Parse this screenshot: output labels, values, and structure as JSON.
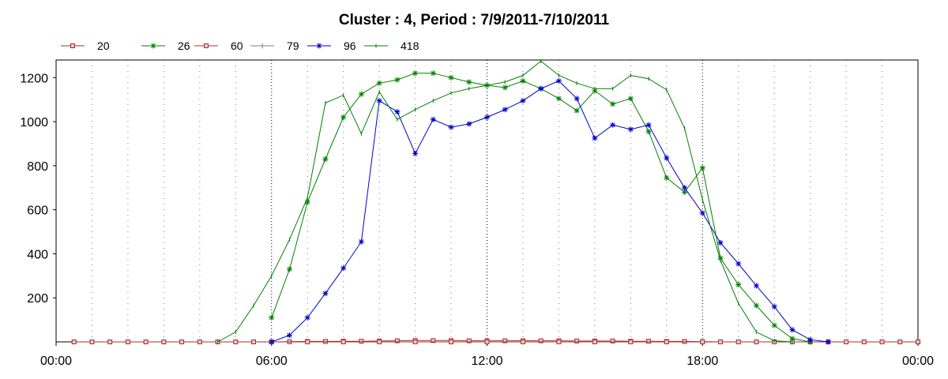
{
  "chart_data": {
    "type": "line",
    "title": "Cluster : 4, Period : 7/9/2011-7/10/2011",
    "xlabel": "",
    "ylabel": "",
    "x_ticks": [
      "00:00",
      "06:00",
      "12:00",
      "18:00",
      "00:00"
    ],
    "x_range_hours": [
      0,
      24
    ],
    "y_ticks": [
      200,
      400,
      600,
      800,
      1000,
      1200
    ],
    "ylim": [
      0,
      1280
    ],
    "grid": "vertical dotted",
    "legend_position": "top-left",
    "series": [
      {
        "name": "20",
        "color": "#a03030",
        "marker": "square",
        "points": [
          [
            0.5,
            0
          ],
          [
            1,
            0
          ],
          [
            1.5,
            0
          ],
          [
            2,
            0
          ],
          [
            2.5,
            0
          ],
          [
            3,
            0
          ],
          [
            3.5,
            0
          ],
          [
            4,
            0
          ],
          [
            4.5,
            0
          ],
          [
            5,
            0
          ],
          [
            5.5,
            0
          ],
          [
            6,
            0
          ],
          [
            6.5,
            1
          ],
          [
            7,
            2
          ],
          [
            7.5,
            2
          ],
          [
            8,
            3
          ],
          [
            8.5,
            3
          ],
          [
            9,
            4
          ],
          [
            9.5,
            5
          ],
          [
            10,
            6
          ],
          [
            10.5,
            6
          ],
          [
            11,
            6
          ],
          [
            11.5,
            5
          ],
          [
            12,
            5
          ],
          [
            12.5,
            5
          ],
          [
            13,
            5
          ],
          [
            13.5,
            5
          ],
          [
            14,
            5
          ],
          [
            14.5,
            4
          ],
          [
            15,
            4
          ],
          [
            15.5,
            4
          ],
          [
            16,
            3
          ],
          [
            16.5,
            3
          ],
          [
            17,
            2
          ],
          [
            17.5,
            2
          ],
          [
            18,
            1
          ],
          [
            18.5,
            0
          ],
          [
            19,
            0
          ],
          [
            19.5,
            0
          ],
          [
            20,
            0
          ],
          [
            20.5,
            0
          ],
          [
            21,
            0
          ],
          [
            21.5,
            0
          ],
          [
            22,
            0
          ],
          [
            22.5,
            0
          ],
          [
            23,
            0
          ],
          [
            23.5,
            0
          ],
          [
            24,
            0
          ]
        ]
      },
      {
        "name": "26",
        "color": "#008000",
        "marker": "star",
        "points": [
          [
            6,
            110
          ],
          [
            6.5,
            330
          ],
          [
            7,
            635
          ],
          [
            7.5,
            830
          ],
          [
            8,
            1020
          ],
          [
            8.5,
            1125
          ],
          [
            9,
            1175
          ],
          [
            9.5,
            1190
          ],
          [
            10,
            1220
          ],
          [
            10.5,
            1220
          ],
          [
            11,
            1200
          ],
          [
            11.5,
            1180
          ],
          [
            12,
            1165
          ],
          [
            12.5,
            1155
          ],
          [
            13,
            1185
          ],
          [
            13.5,
            1150
          ],
          [
            14,
            1105
          ],
          [
            14.5,
            1050
          ],
          [
            15,
            1140
          ],
          [
            15.5,
            1080
          ],
          [
            16,
            1105
          ],
          [
            16.5,
            955
          ],
          [
            17,
            745
          ],
          [
            17.5,
            680
          ],
          [
            18,
            790
          ],
          [
            18.5,
            380
          ],
          [
            19,
            260
          ],
          [
            19.5,
            165
          ],
          [
            20,
            75
          ],
          [
            20.5,
            15
          ],
          [
            21,
            0
          ]
        ]
      },
      {
        "name": "60",
        "color": "#b03030",
        "marker": "square",
        "points": [
          [
            6,
            0
          ],
          [
            7,
            0
          ],
          [
            8,
            0
          ],
          [
            9,
            0
          ],
          [
            10,
            0
          ],
          [
            11,
            0
          ],
          [
            12,
            0
          ],
          [
            13,
            0
          ],
          [
            14,
            0
          ],
          [
            15,
            0
          ],
          [
            16,
            0
          ],
          [
            17,
            0
          ],
          [
            18,
            0
          ]
        ]
      },
      {
        "name": "79",
        "color": "#808080",
        "marker": "plus",
        "points": []
      },
      {
        "name": "96",
        "color": "#0000cc",
        "marker": "star",
        "points": [
          [
            6,
            0
          ],
          [
            6.5,
            30
          ],
          [
            7,
            110
          ],
          [
            7.5,
            220
          ],
          [
            8,
            335
          ],
          [
            8.5,
            455
          ],
          [
            9,
            1095
          ],
          [
            9.5,
            1045
          ],
          [
            10,
            855
          ],
          [
            10.5,
            1010
          ],
          [
            11,
            975
          ],
          [
            11.5,
            990
          ],
          [
            12,
            1020
          ],
          [
            12.5,
            1055
          ],
          [
            13,
            1095
          ],
          [
            13.5,
            1150
          ],
          [
            14,
            1185
          ],
          [
            14.5,
            1105
          ],
          [
            15,
            925
          ],
          [
            15.5,
            985
          ],
          [
            16,
            965
          ],
          [
            16.5,
            985
          ],
          [
            17,
            835
          ],
          [
            17.5,
            700
          ],
          [
            18,
            585
          ],
          [
            18.5,
            450
          ],
          [
            19,
            355
          ],
          [
            19.5,
            255
          ],
          [
            20,
            160
          ],
          [
            20.5,
            55
          ],
          [
            21,
            10
          ],
          [
            21.5,
            0
          ]
        ]
      },
      {
        "name": "418",
        "color": "#008000",
        "marker": "tick",
        "points": [
          [
            4.5,
            0
          ],
          [
            5,
            45
          ],
          [
            5.5,
            165
          ],
          [
            6,
            300
          ],
          [
            6.5,
            465
          ],
          [
            7,
            655
          ],
          [
            7.5,
            1085
          ],
          [
            8,
            1120
          ],
          [
            8.5,
            945
          ],
          [
            9,
            1135
          ],
          [
            9.5,
            1010
          ],
          [
            10,
            1055
          ],
          [
            10.5,
            1095
          ],
          [
            11,
            1130
          ],
          [
            11.5,
            1150
          ],
          [
            12,
            1165
          ],
          [
            12.5,
            1180
          ],
          [
            13,
            1210
          ],
          [
            13.5,
            1275
          ],
          [
            14,
            1210
          ],
          [
            14.5,
            1175
          ],
          [
            15,
            1150
          ],
          [
            15.5,
            1150
          ],
          [
            16,
            1210
          ],
          [
            16.5,
            1195
          ],
          [
            17,
            1145
          ],
          [
            17.5,
            970
          ],
          [
            18,
            645
          ],
          [
            18.5,
            370
          ],
          [
            19,
            175
          ],
          [
            19.5,
            45
          ],
          [
            20,
            5
          ],
          [
            20.5,
            0
          ]
        ]
      }
    ]
  }
}
